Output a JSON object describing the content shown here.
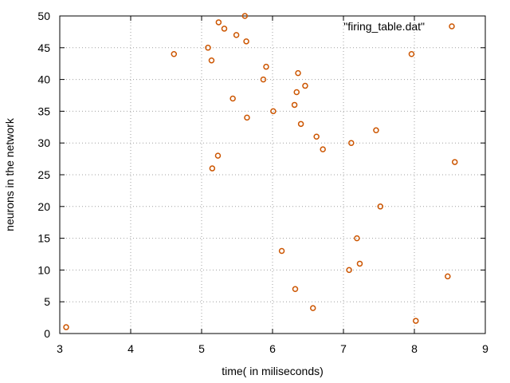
{
  "chart_data": {
    "type": "scatter",
    "title": "",
    "xlabel": "time( in miliseconds)",
    "ylabel": "neurons in the network",
    "xlim": [
      3,
      9
    ],
    "ylim": [
      0,
      50
    ],
    "xticks": [
      3,
      4,
      5,
      6,
      7,
      8,
      9
    ],
    "yticks": [
      0,
      5,
      10,
      15,
      20,
      25,
      30,
      35,
      40,
      45,
      50
    ],
    "grid": true,
    "legend_position": "top-right",
    "series": [
      {
        "name": "\"firing_table.dat\"",
        "color": "#cc5500",
        "marker": "open-circle",
        "x": [
          3.09,
          4.61,
          5.09,
          5.14,
          5.15,
          5.23,
          5.24,
          5.32,
          5.44,
          5.49,
          5.61,
          5.63,
          5.64,
          5.87,
          5.91,
          6.01,
          6.13,
          6.31,
          6.32,
          6.34,
          6.36,
          6.4,
          6.46,
          6.57,
          6.62,
          6.71,
          7.08,
          7.11,
          7.19,
          7.23,
          7.46,
          7.52,
          7.96,
          8.02,
          8.47,
          8.57
        ],
        "y": [
          1,
          44,
          45,
          43,
          26,
          28,
          49,
          48,
          37,
          47,
          50,
          46,
          34,
          40,
          42,
          35,
          13,
          36,
          7,
          38,
          41,
          33,
          39,
          4,
          31,
          29,
          10,
          30,
          15,
          11,
          32,
          20,
          44,
          2,
          9,
          27
        ]
      }
    ]
  }
}
